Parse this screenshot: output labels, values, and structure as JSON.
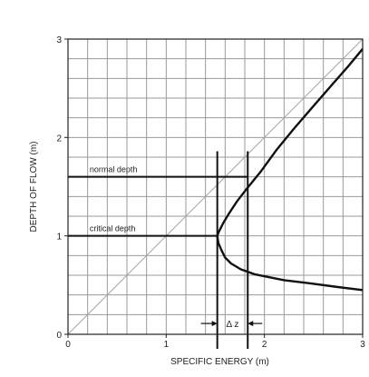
{
  "chart_data": {
    "type": "line",
    "title": "",
    "xlabel": "SPECIFIC ENERGY  (m)",
    "ylabel": "DEPTH OF FLOW  (m)",
    "xlim": [
      0,
      3
    ],
    "ylim": [
      0,
      3
    ],
    "grid": true,
    "grid_step": 0.2,
    "x_ticks": [
      0,
      1,
      2,
      3
    ],
    "y_ticks": [
      0,
      1,
      2,
      3
    ],
    "series": [
      {
        "kind": "reference",
        "x": [
          0,
          3
        ],
        "y": [
          0,
          3
        ]
      },
      {
        "kind": "curve",
        "x": [
          3.0,
          2.85,
          2.7,
          2.5,
          2.3,
          2.12,
          1.96,
          1.82,
          1.72,
          1.64,
          1.58,
          1.55,
          1.53,
          1.52,
          1.53,
          1.56,
          1.6,
          1.66,
          1.76,
          1.9,
          2.05,
          2.2,
          2.45,
          2.75,
          3.0
        ],
        "y": [
          2.9,
          2.72,
          2.55,
          2.32,
          2.09,
          1.87,
          1.65,
          1.48,
          1.35,
          1.23,
          1.13,
          1.07,
          1.03,
          1.0,
          0.93,
          0.86,
          0.78,
          0.72,
          0.66,
          0.61,
          0.58,
          0.55,
          0.52,
          0.48,
          0.45
        ]
      }
    ],
    "annotations": [
      {
        "text": "normal depth",
        "x": 0.22,
        "y": 1.61,
        "line_y": 1.6,
        "line_x_end": 1.83
      },
      {
        "text": "critical depth",
        "x": 0.22,
        "y": 1.01,
        "line_y": 1.0,
        "line_x_end": 1.52
      },
      {
        "text": "Δ z",
        "x": 1.7,
        "y": 0.11
      }
    ],
    "vertical_lines": [
      1.52,
      1.83
    ],
    "delta_z": {
      "x1": 1.52,
      "x2": 1.83,
      "y": 0.11
    }
  }
}
